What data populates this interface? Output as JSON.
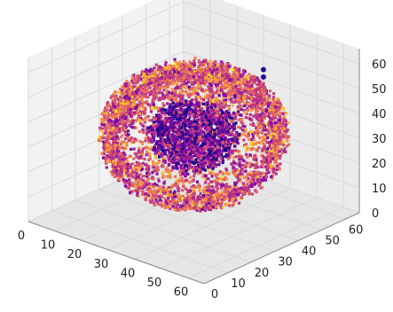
{
  "chart_data": {
    "type": "scatter",
    "dimensions": 3,
    "title": "",
    "xlabel": "",
    "ylabel": "",
    "zlabel": "",
    "xlim": [
      0,
      66
    ],
    "ylim": [
      0,
      66
    ],
    "zlim": [
      0,
      66
    ],
    "x_ticks": [
      "0",
      "10",
      "20",
      "30",
      "40",
      "50",
      "60"
    ],
    "y_ticks": [
      "0",
      "10",
      "20",
      "30",
      "40",
      "50",
      "60"
    ],
    "z_ticks": [
      "0",
      "10",
      "20",
      "30",
      "40",
      "50",
      "60"
    ],
    "grid": true,
    "colormap": "plasma",
    "marker_shape": "voxel cube",
    "description_of_data": "dense voxel point cloud forming a hollow spherical shell cut open toward the viewer, with an inner sphere; colored by value with plasma colormap",
    "shell": {
      "center": [
        33,
        33,
        33
      ],
      "outer_radius": 27,
      "inner_radius": 22,
      "opening_toward": "front"
    },
    "core": {
      "center": [
        33,
        33,
        33
      ],
      "radius": 13
    },
    "outliers": [
      {
        "x": 30,
        "y": 66,
        "z": 44
      },
      {
        "x": 30,
        "y": 66,
        "z": 41
      }
    ],
    "colors": {
      "low": "#3b0f8c",
      "mid": "#a7288d",
      "high": "#f9a431",
      "pane": "#f2f2f2",
      "grid": "#d9d9d9",
      "axis": "#888888"
    }
  }
}
